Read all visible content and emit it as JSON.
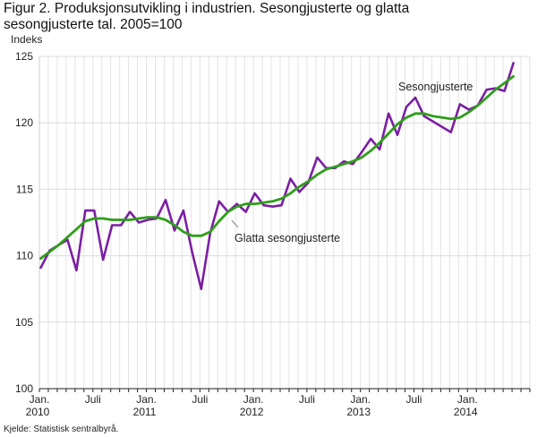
{
  "chart_data": {
    "type": "line",
    "title_line1": "Figur 2. Produksjonsutvikling i industrien. Sesongjusterte og glatta",
    "title_line2": "sesongjusterte tal. 2005=100",
    "ylabel": "Indeks",
    "source": "Kjelde: Statistisk sentralbyrå.",
    "ylim": [
      100,
      125
    ],
    "yticks": [
      100,
      105,
      110,
      115,
      120,
      125
    ],
    "grid": true,
    "x_start": "2010-01",
    "xticks": [
      {
        "month": 0,
        "line1": "Jan.",
        "line2": "2010"
      },
      {
        "month": 6,
        "line1": "Juli",
        "line2": ""
      },
      {
        "month": 12,
        "line1": "Jan.",
        "line2": "2011"
      },
      {
        "month": 18,
        "line1": "Juli",
        "line2": ""
      },
      {
        "month": 24,
        "line1": "Jan.",
        "line2": "2012"
      },
      {
        "month": 30,
        "line1": "Juli",
        "line2": ""
      },
      {
        "month": 36,
        "line1": "Jan.",
        "line2": "2013"
      },
      {
        "month": 42,
        "line1": "Juli",
        "line2": ""
      },
      {
        "month": 48,
        "line1": "Jan.",
        "line2": "2014"
      }
    ],
    "series": [
      {
        "name": "Sesongjusterte",
        "color": "#7b1fa2",
        "values": [
          109.1,
          110.4,
          110.8,
          111.2,
          108.9,
          113.4,
          113.4,
          109.7,
          112.3,
          112.3,
          113.3,
          112.5,
          112.7,
          112.8,
          114.2,
          111.9,
          113.4,
          110.2,
          107.5,
          111.7,
          114.1,
          113.3,
          113.9,
          113.3,
          114.7,
          113.8,
          113.7,
          113.8,
          115.8,
          114.8,
          115.5,
          117.4,
          116.6,
          116.6,
          117.1,
          116.9,
          117.8,
          118.8,
          118.0,
          120.7,
          119.1,
          121.2,
          121.9,
          120.5,
          120.1,
          119.7,
          119.3,
          121.4,
          121.0,
          121.3,
          122.5,
          122.6,
          122.4,
          124.5
        ]
      },
      {
        "name": "Glatta sesongjusterte",
        "color": "#2e9e1a",
        "values": [
          109.8,
          110.3,
          110.8,
          111.4,
          112.0,
          112.6,
          112.8,
          112.8,
          112.7,
          112.7,
          112.7,
          112.8,
          112.9,
          112.9,
          112.7,
          112.3,
          111.8,
          111.5,
          111.5,
          111.8,
          112.6,
          113.3,
          113.7,
          113.9,
          113.9,
          114.0,
          114.1,
          114.3,
          114.7,
          115.2,
          115.6,
          116.1,
          116.5,
          116.7,
          116.9,
          117.1,
          117.4,
          117.9,
          118.5,
          119.2,
          119.9,
          120.4,
          120.7,
          120.7,
          120.5,
          120.4,
          120.3,
          120.4,
          120.8,
          121.3,
          121.9,
          122.5,
          123.0,
          123.5
        ]
      }
    ],
    "annotations": [
      {
        "text": "Sesongjusterte",
        "series": 0
      },
      {
        "text": "Glatta sesongjusterte",
        "series": 1
      }
    ]
  }
}
